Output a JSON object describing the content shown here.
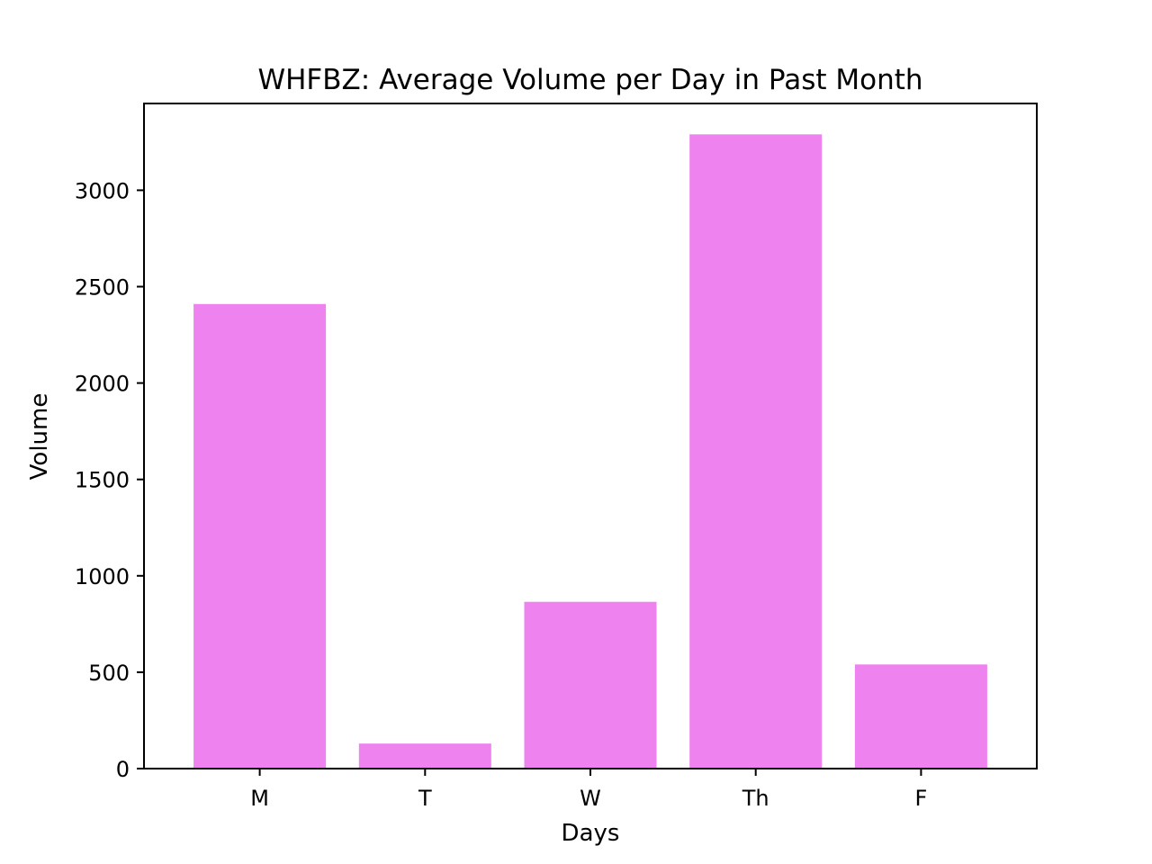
{
  "chart_data": {
    "type": "bar",
    "title": "WHFBZ: Average Volume per Day in Past Month",
    "xlabel": "Days",
    "ylabel": "Volume",
    "categories": [
      "M",
      "T",
      "W",
      "Th",
      "F"
    ],
    "values": [
      2410,
      130,
      865,
      3290,
      540
    ],
    "ylim": [
      0,
      3450
    ],
    "yticks": [
      0,
      500,
      1000,
      1500,
      2000,
      2500,
      3000
    ],
    "bar_color": "#ee82ee",
    "grid": false,
    "legend": "none"
  }
}
